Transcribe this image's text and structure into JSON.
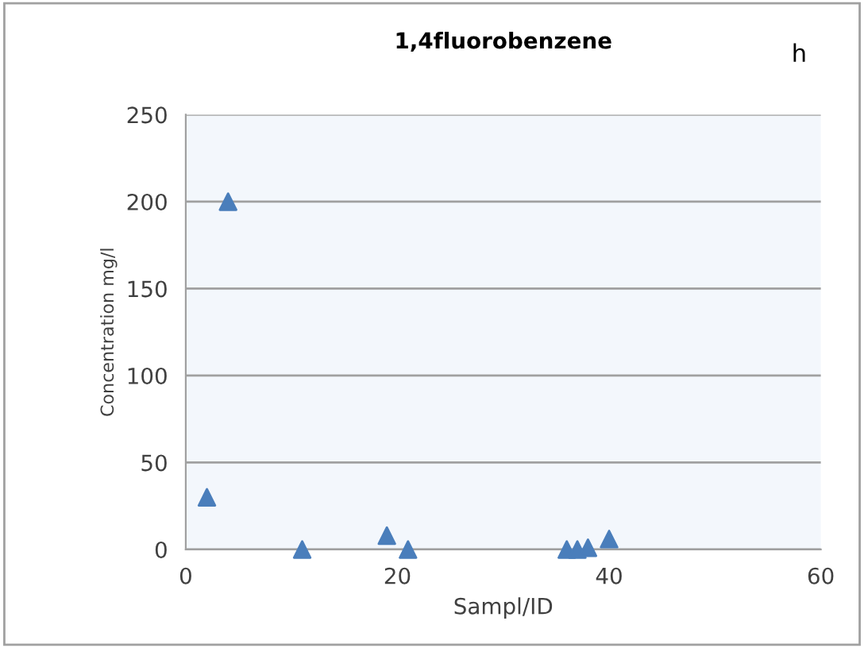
{
  "chart_data": {
    "type": "scatter",
    "title": "1,4fluorobenzene",
    "xlabel": "Sampl/ID",
    "ylabel": "Concentration mg/l",
    "annotations": [
      "h"
    ],
    "x": [
      2,
      4,
      11,
      19,
      21,
      36,
      37,
      38,
      40
    ],
    "series": [
      {
        "color": "#4a7ebb",
        "values": [
          30,
          200,
          0,
          8,
          0,
          0,
          0,
          1,
          6
        ]
      }
    ],
    "xlim": [
      0,
      60
    ],
    "xticks": [
      0,
      20,
      40,
      60
    ],
    "ylim": [
      0,
      250
    ],
    "yticks": [
      0,
      50,
      100,
      150,
      200,
      250
    ],
    "grid": "y",
    "marker": "triangle",
    "legend": false
  }
}
